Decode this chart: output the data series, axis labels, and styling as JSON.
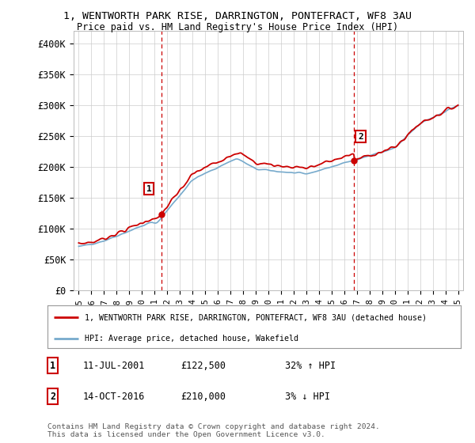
{
  "title": "1, WENTWORTH PARK RISE, DARRINGTON, PONTEFRACT, WF8 3AU",
  "subtitle": "Price paid vs. HM Land Registry's House Price Index (HPI)",
  "title_fontsize": 10,
  "subtitle_fontsize": 9,
  "ylabel_ticks": [
    "£0",
    "£50K",
    "£100K",
    "£150K",
    "£200K",
    "£250K",
    "£300K",
    "£350K",
    "£400K"
  ],
  "ytick_values": [
    0,
    50000,
    100000,
    150000,
    200000,
    250000,
    300000,
    350000,
    400000
  ],
  "ylim": [
    0,
    420000
  ],
  "purchase1_year": 2001.53,
  "purchase1_price": 122500,
  "purchase2_year": 2016.79,
  "purchase2_price": 210000,
  "legend_line1": "1, WENTWORTH PARK RISE, DARRINGTON, PONTEFRACT, WF8 3AU (detached house)",
  "legend_line2": "HPI: Average price, detached house, Wakefield",
  "red_color": "#cc0000",
  "blue_color": "#77aacc",
  "background_color": "#ffffff",
  "grid_color": "#cccccc",
  "footer": "Contains HM Land Registry data © Crown copyright and database right 2024.\nThis data is licensed under the Open Government Licence v3.0."
}
